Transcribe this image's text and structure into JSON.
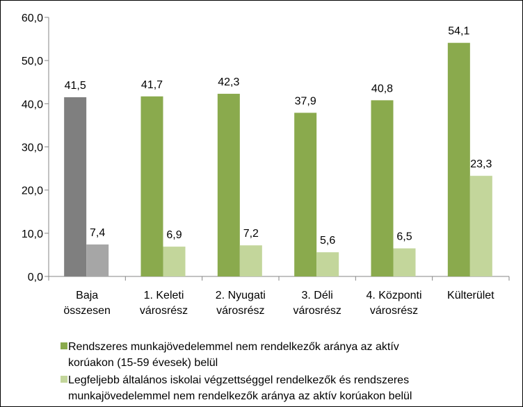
{
  "chart_data": {
    "type": "bar",
    "categories": [
      [
        "Baja",
        "összesen"
      ],
      [
        "1. Keleti",
        "városrész"
      ],
      [
        "2. Nyugati",
        "városrész"
      ],
      [
        "3. Déli",
        "városrész"
      ],
      [
        "4. Központi",
        "városrész"
      ],
      [
        "Külterület"
      ]
    ],
    "series": [
      {
        "name": "Rendszeres munkajövedelemmel nem rendelkezők aránya az aktív korúakon (15-59 évesek) belül",
        "legend_lines": [
          "Rendszeres munkajövedelemmel nem rendelkezők aránya az aktív",
          "korúakon (15-59 évesek) belül"
        ],
        "values": [
          41.5,
          41.7,
          42.3,
          37.9,
          40.8,
          54.1
        ],
        "labels": [
          "41,5",
          "41,7",
          "42,3",
          "37,9",
          "40,8",
          "54,1"
        ],
        "color": "#8aaa4d",
        "first_color": "#7f7f7f"
      },
      {
        "name": "Legfeljebb általános iskolai végzettséggel rendelkezők és rendszeres munkajövedelemmel nem rendelkezők aránya az aktív korúakon belül",
        "legend_lines": [
          "Legfeljebb általános iskolai végzettséggel rendelkezők és rendszeres",
          "munkajövedelemmel nem rendelkezők aránya az aktív korúakon belül"
        ],
        "values": [
          7.4,
          6.9,
          7.2,
          5.6,
          6.5,
          23.3
        ],
        "labels": [
          "7,4",
          "6,9",
          "7,2",
          "5,6",
          "6,5",
          "23,3"
        ],
        "color": "#c3d69b",
        "first_color": "#a6a6a6"
      }
    ],
    "ylim": [
      0,
      60
    ],
    "yticks": [
      0,
      10,
      20,
      30,
      40,
      50,
      60
    ],
    "ytick_labels": [
      "0,0",
      "10,0",
      "20,0",
      "30,0",
      "40,0",
      "50,0",
      "60,0"
    ],
    "grid": false,
    "legend_position": "bottom"
  }
}
